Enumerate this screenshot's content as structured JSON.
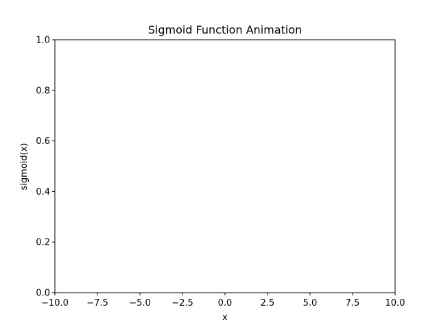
{
  "chart_data": {
    "type": "line",
    "title": "Sigmoid Function Animation",
    "xlabel": "x",
    "ylabel": "sigmoid(x)",
    "xlim": [
      -10,
      10
    ],
    "ylim": [
      0,
      1
    ],
    "x_ticks": [
      -10,
      -7.5,
      -5,
      -2.5,
      0,
      2.5,
      5,
      7.5,
      10
    ],
    "x_tick_labels": [
      "−10.0",
      "−7.5",
      "−5.0",
      "−2.5",
      "0.0",
      "2.5",
      "5.0",
      "7.5",
      "10.0"
    ],
    "y_ticks": [
      0,
      0.2,
      0.4,
      0.6,
      0.8,
      1.0
    ],
    "y_tick_labels": [
      "0.0",
      "0.2",
      "0.4",
      "0.6",
      "0.8",
      "1.0"
    ],
    "series": [],
    "grid": false,
    "colors": {
      "axes": "#000000",
      "background": "#ffffff"
    }
  }
}
